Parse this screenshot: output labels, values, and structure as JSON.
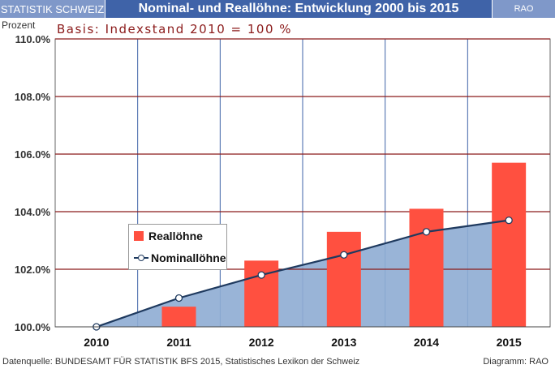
{
  "header": {
    "left": "STATISTIK SCHWEIZ",
    "title": "Nominal- und Reallöhne: Entwicklung 2000 bis 2015",
    "right": "RAO"
  },
  "footer": {
    "source": "Datenquelle: BUNDESAMT FÜR STATISTIK BFS 2015, Statistisches Lexikon der Schweiz",
    "credit": "Diagramm: RAO"
  },
  "colors": {
    "bar": "#ff5040",
    "line": "#1f3a5f",
    "area": "#8eacd3",
    "hgrid": "#8b1a1a",
    "vgrid": "#3f63a8"
  },
  "chart_data": {
    "type": "bar",
    "title": "Nominal- und Reallöhne: Entwicklung 2000 bis 2015",
    "subtitle": "Basis: Indexstand 2010 = 100 %",
    "ylabel": "Prozent",
    "xlabel": "",
    "categories": [
      "2010",
      "2011",
      "2012",
      "2013",
      "2014",
      "2015"
    ],
    "ylim": [
      100,
      110
    ],
    "yticks": [
      100,
      102,
      104,
      106,
      108,
      110
    ],
    "ytick_labels": [
      "100.0%",
      "102.0%",
      "104.0%",
      "106.0%",
      "108.0%",
      "110.0%"
    ],
    "grid": true,
    "legend": "left-middle",
    "series": [
      {
        "name": "Reallöhne",
        "type": "bar",
        "values": [
          null,
          100.7,
          102.3,
          103.3,
          104.1,
          105.7
        ]
      },
      {
        "name": "Nominallöhne",
        "type": "line-area",
        "values": [
          100.0,
          101.0,
          101.8,
          102.5,
          103.3,
          103.7
        ]
      }
    ]
  }
}
